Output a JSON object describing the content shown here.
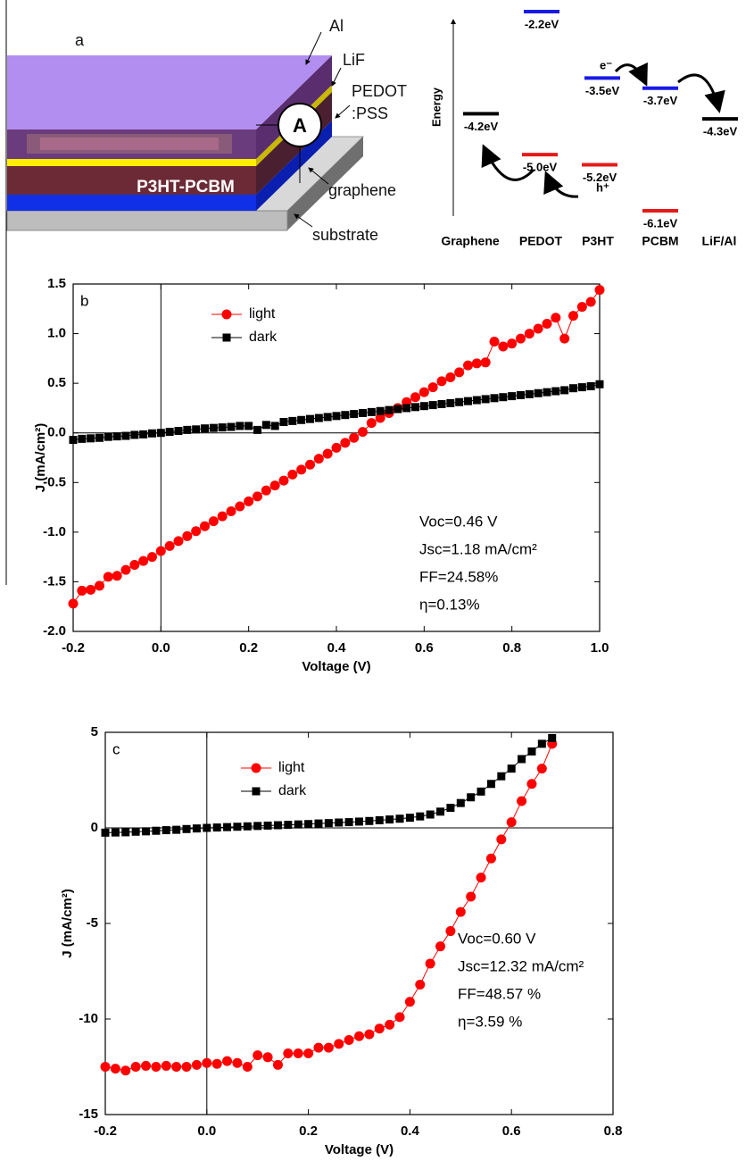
{
  "diagram": {
    "device": {
      "panel": "a",
      "labels": {
        "al": "Al",
        "lif": "LiF",
        "pedot": "PEDOT",
        "pss": ":PSS",
        "active": "P3HT-PCBM",
        "graphene": "graphene",
        "substrate": "substrate"
      },
      "meter": "A"
    },
    "energy": {
      "axis_label": "Energy",
      "levels": [
        {
          "value": -2.2,
          "label": "-2.2eV",
          "color": "#1a1ae6"
        },
        {
          "value": -4.2,
          "label": "-4.2eV",
          "color": "#000000"
        },
        {
          "value": -5.0,
          "label": "-5.0eV",
          "color": "#e61a1a"
        },
        {
          "value": -3.5,
          "label": "-3.5eV",
          "color": "#1a1ae6"
        },
        {
          "value": -5.2,
          "label": "-5.2eV",
          "color": "#e61a1a"
        },
        {
          "value": -3.7,
          "label": "-3.7eV",
          "color": "#1a1ae6"
        },
        {
          "value": -6.1,
          "label": "-6.1eV",
          "color": "#e61a1a"
        },
        {
          "value": -4.3,
          "label": "-4.3eV",
          "color": "#000000"
        }
      ],
      "materials": [
        "Graphene",
        "PEDOT",
        "P3HT",
        "PCBM",
        "LiF/Al"
      ],
      "electron": "e⁻",
      "hole": "h⁺"
    }
  },
  "chart_data": [
    {
      "type": "line",
      "panel": "b",
      "xlabel": "Voltage (V)",
      "ylabel": "J (mA/cm²)",
      "x": [
        -0.2,
        -0.18,
        -0.16,
        -0.14,
        -0.12,
        -0.1,
        -0.08,
        -0.06,
        -0.04,
        -0.02,
        0,
        0.02,
        0.04,
        0.06,
        0.08,
        0.1,
        0.12,
        0.14,
        0.16,
        0.18,
        0.2,
        0.22,
        0.24,
        0.26,
        0.28,
        0.3,
        0.32,
        0.34,
        0.36,
        0.38,
        0.4,
        0.42,
        0.44,
        0.46,
        0.48,
        0.5,
        0.52,
        0.54,
        0.56,
        0.58,
        0.6,
        0.62,
        0.64,
        0.66,
        0.68,
        0.7,
        0.72,
        0.74,
        0.76,
        0.78,
        0.8,
        0.82,
        0.84,
        0.86,
        0.88,
        0.9,
        0.92,
        0.94,
        0.96,
        0.98,
        1.0
      ],
      "series": [
        {
          "name": "light",
          "color": "#ff0000",
          "marker": "circle",
          "values": [
            -1.72,
            -1.59,
            -1.58,
            -1.54,
            -1.45,
            -1.44,
            -1.38,
            -1.33,
            -1.29,
            -1.25,
            -1.19,
            -1.14,
            -1.09,
            -1.04,
            -0.99,
            -0.94,
            -0.89,
            -0.84,
            -0.79,
            -0.74,
            -0.69,
            -0.64,
            -0.58,
            -0.53,
            -0.48,
            -0.42,
            -0.37,
            -0.32,
            -0.26,
            -0.21,
            -0.15,
            -0.1,
            -0.05,
            0.01,
            0.1,
            0.15,
            0.2,
            0.25,
            0.31,
            0.36,
            0.41,
            0.46,
            0.52,
            0.56,
            0.61,
            0.68,
            0.7,
            0.71,
            0.92,
            0.87,
            0.9,
            0.95,
            1.0,
            1.05,
            1.1,
            1.16,
            0.95,
            1.18,
            1.27,
            1.32,
            1.44
          ]
        },
        {
          "name": "dark",
          "color": "#000000",
          "marker": "square",
          "values": [
            -0.07,
            -0.06,
            -0.055,
            -0.05,
            -0.04,
            -0.035,
            -0.03,
            -0.02,
            -0.015,
            -0.005,
            0,
            0.01,
            0.02,
            0.03,
            0.035,
            0.045,
            0.05,
            0.055,
            0.06,
            0.07,
            0.07,
            0.03,
            0.08,
            0.07,
            0.11,
            0.12,
            0.13,
            0.14,
            0.15,
            0.16,
            0.17,
            0.18,
            0.19,
            0.2,
            0.21,
            0.22,
            0.23,
            0.24,
            0.25,
            0.26,
            0.27,
            0.28,
            0.29,
            0.3,
            0.31,
            0.32,
            0.33,
            0.34,
            0.35,
            0.36,
            0.37,
            0.38,
            0.39,
            0.4,
            0.41,
            0.42,
            0.43,
            0.45,
            0.46,
            0.47,
            0.49
          ]
        }
      ],
      "xlim": [
        -0.2,
        1.0
      ],
      "xticks": [
        -0.2,
        {
          "value": 0,
          "label": "0.0"
        },
        0.2,
        0.4,
        0.6,
        0.8,
        {
          "value": 1,
          "label": "1.0"
        }
      ],
      "ylim": [
        -2.0,
        1.5
      ],
      "yticks": [
        {
          "value": -2,
          "label": "-2.0"
        },
        -1.5,
        {
          "value": -1,
          "label": "-1.0"
        },
        -0.5,
        {
          "value": 0,
          "label": "0.0"
        },
        0.5,
        {
          "value": 1,
          "label": "1.0"
        },
        1.5
      ],
      "zero_lines": true,
      "legend": "upper left",
      "annotations": [
        "Voc=0.46 V",
        "Jsc=1.18 mA/cm²",
        "FF=24.58%",
        "η=0.13%"
      ]
    },
    {
      "type": "line",
      "panel": "c",
      "xlabel": "Voltage (V)",
      "ylabel": "J (mA/cm²)",
      "x": [
        -0.2,
        -0.18,
        -0.16,
        -0.14,
        -0.12,
        -0.1,
        -0.08,
        -0.06,
        -0.04,
        -0.02,
        0,
        0.02,
        0.04,
        0.06,
        0.08,
        0.1,
        0.12,
        0.14,
        0.16,
        0.18,
        0.2,
        0.22,
        0.24,
        0.26,
        0.28,
        0.3,
        0.32,
        0.34,
        0.36,
        0.38,
        0.4,
        0.42,
        0.44,
        0.46,
        0.48,
        0.5,
        0.52,
        0.54,
        0.56,
        0.58,
        0.6,
        0.62,
        0.64,
        0.66,
        0.68
      ],
      "series": [
        {
          "name": "light",
          "color": "#ff0000",
          "marker": "circle",
          "values": [
            -12.5,
            -12.6,
            -12.7,
            -12.5,
            -12.45,
            -12.5,
            -12.45,
            -12.5,
            -12.5,
            -12.4,
            -12.3,
            -12.35,
            -12.2,
            -12.3,
            -12.5,
            -11.9,
            -12.0,
            -12.4,
            -11.8,
            -11.8,
            -11.8,
            -11.5,
            -11.5,
            -11.3,
            -11.1,
            -10.9,
            -10.8,
            -10.5,
            -10.3,
            -9.9,
            -9.1,
            -8.2,
            -7.1,
            -6.2,
            -5.4,
            -4.4,
            -3.6,
            -2.6,
            -1.6,
            -0.6,
            0.3,
            1.4,
            2.3,
            3.1,
            4.4
          ]
        },
        {
          "name": "dark",
          "color": "#000000",
          "marker": "square",
          "values": [
            -0.25,
            -0.24,
            -0.23,
            -0.2,
            -0.18,
            -0.15,
            -0.12,
            -0.1,
            -0.06,
            -0.03,
            0,
            0.02,
            0.04,
            0.06,
            0.08,
            0.1,
            0.12,
            0.14,
            0.16,
            0.18,
            0.2,
            0.23,
            0.25,
            0.28,
            0.3,
            0.33,
            0.36,
            0.4,
            0.44,
            0.48,
            0.53,
            0.6,
            0.7,
            0.85,
            1.05,
            1.3,
            1.6,
            1.9,
            2.3,
            2.7,
            3.1,
            3.6,
            4.0,
            4.4,
            4.7
          ]
        }
      ],
      "xlim": [
        -0.2,
        0.8
      ],
      "xticks": [
        -0.2,
        {
          "value": 0,
          "label": "0.0"
        },
        0.2,
        0.4,
        0.6,
        0.8
      ],
      "ylim": [
        -15,
        5
      ],
      "yticks": [
        -15,
        -10,
        -5,
        0,
        5
      ],
      "zero_lines": true,
      "legend": "upper left",
      "annotations": [
        "Voc=0.60 V",
        "Jsc=12.32 mA/cm²",
        "FF=48.57 %",
        "η=3.59 %"
      ]
    }
  ]
}
